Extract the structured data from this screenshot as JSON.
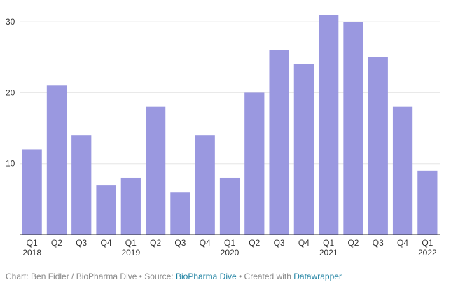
{
  "chart_data": {
    "type": "bar",
    "categories": [
      "Q1 2018",
      "Q2",
      "Q3",
      "Q4",
      "Q1 2019",
      "Q2",
      "Q3",
      "Q4",
      "Q1 2020",
      "Q2",
      "Q3",
      "Q4",
      "Q1 2021",
      "Q2",
      "Q3",
      "Q4",
      "Q1 2022"
    ],
    "x_tick_lines": [
      [
        "Q1",
        "2018"
      ],
      [
        "Q2"
      ],
      [
        "Q3"
      ],
      [
        "Q4"
      ],
      [
        "Q1",
        "2019"
      ],
      [
        "Q2"
      ],
      [
        "Q3"
      ],
      [
        "Q4"
      ],
      [
        "Q1",
        "2020"
      ],
      [
        "Q2"
      ],
      [
        "Q3"
      ],
      [
        "Q4"
      ],
      [
        "Q1",
        "2021"
      ],
      [
        "Q2"
      ],
      [
        "Q3"
      ],
      [
        "Q4"
      ],
      [
        "Q1",
        "2022"
      ]
    ],
    "values": [
      12,
      21,
      14,
      7,
      8,
      18,
      6,
      14,
      8,
      20,
      26,
      24,
      31,
      30,
      25,
      18,
      9
    ],
    "ylim": [
      0,
      31
    ],
    "yticks": [
      10,
      20,
      30
    ],
    "grid": true,
    "bar_color": "#9a98e0",
    "title": "",
    "xlabel": "",
    "ylabel": ""
  },
  "footer": {
    "prefix": "Chart: Ben Fidler / BioPharma Dive • Source: ",
    "source_link": "BioPharma Dive",
    "middle": " • Created with ",
    "tool_link": "Datawrapper"
  },
  "colors": {
    "link": "#1d81a2",
    "footer_text": "#888888",
    "grid": "#e6e6e6",
    "axis": "#333333"
  }
}
